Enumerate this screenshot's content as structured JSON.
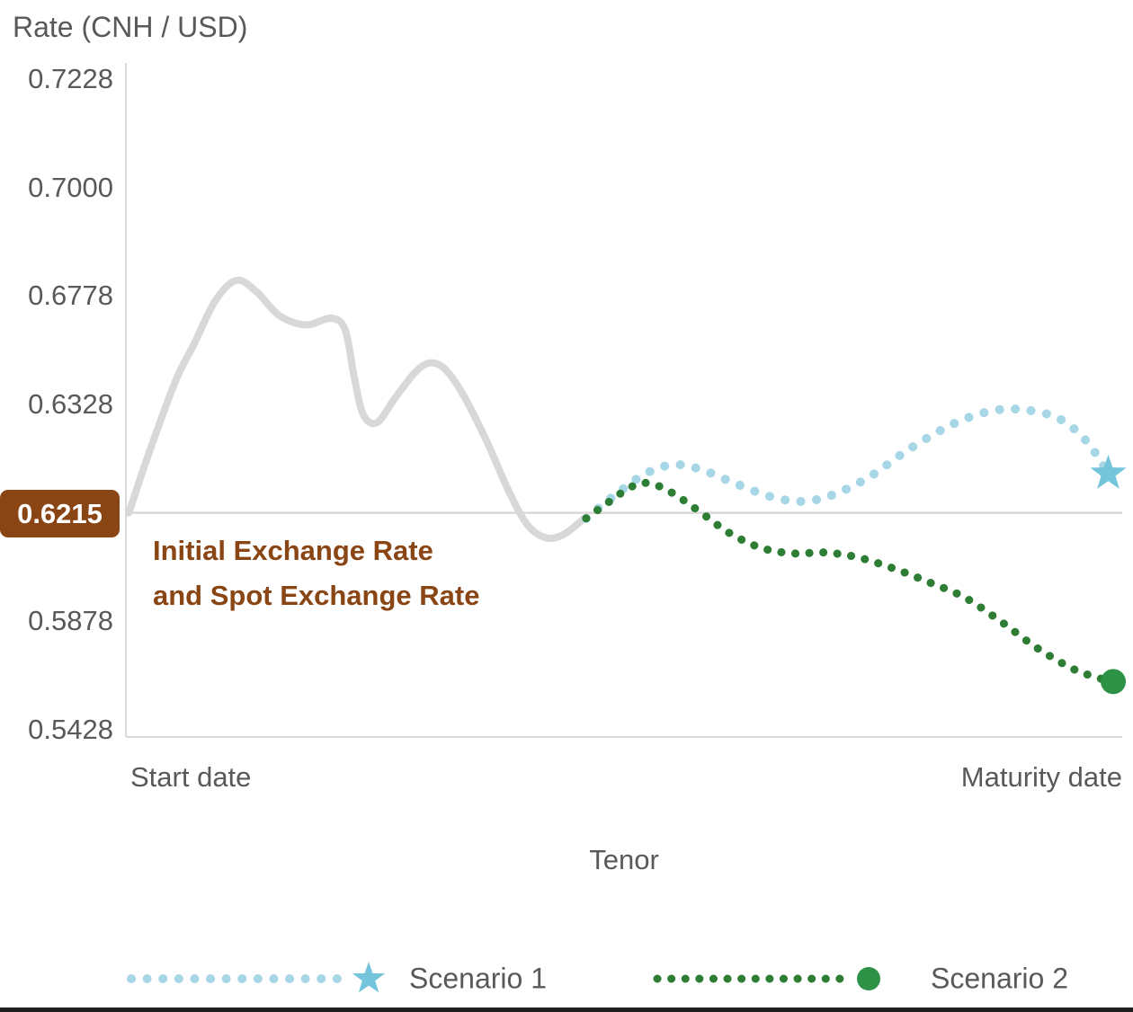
{
  "colors": {
    "brown": "#8a4514",
    "text-gray": "#595959",
    "axis-gray": "#d9d9d9",
    "historical-gray": "#d8d8d8",
    "scenario1-blue": "#a7d7e7",
    "scenario1-marker": "#74c5db",
    "scenario2-green": "#2e7d34",
    "scenario2-marker": "#2d9246",
    "bottom-bar": "#1e1e1e"
  },
  "chart_data": {
    "type": "line",
    "y_axis_title": "Rate (CNH / USD)",
    "x_axis_title": "Tenor",
    "x_tick_labels": [
      "Start date",
      "Maturity date"
    ],
    "y_tick_labels": [
      "0.7228",
      "0.7000",
      "0.6778",
      "0.6328",
      "0.6215",
      "0.5878",
      "0.5428"
    ],
    "y_tick_values": [
      0.7228,
      0.7,
      0.6778,
      0.6328,
      0.6215,
      0.5878,
      0.5428
    ],
    "grid": "off",
    "legend_position": "bottom",
    "reference_line": {
      "value": 0.6215,
      "badge_label": "0.6215",
      "annotation_line1": "Initial Exchange Rate",
      "annotation_line2": "and Spot Exchange Rate"
    },
    "series": [
      {
        "id": "historical",
        "color": "#d8d8d8",
        "line_style": "solid",
        "width": 8,
        "points": [
          [
            0.3,
            0.6215
          ],
          [
            2.3,
            0.6277
          ],
          [
            5.0,
            0.6427
          ],
          [
            6.8,
            0.6575
          ],
          [
            9.0,
            0.676
          ],
          [
            11.1,
            0.681
          ],
          [
            13.1,
            0.6787
          ],
          [
            15.4,
            0.6697
          ],
          [
            18.1,
            0.6658
          ],
          [
            20.6,
            0.6686
          ],
          [
            22.0,
            0.6638
          ],
          [
            22.9,
            0.6446
          ],
          [
            23.8,
            0.6318
          ],
          [
            25.2,
            0.6309
          ],
          [
            27.0,
            0.6354
          ],
          [
            29.1,
            0.6464
          ],
          [
            30.6,
            0.6501
          ],
          [
            32.1,
            0.6472
          ],
          [
            33.9,
            0.6365
          ],
          [
            36.2,
            0.629
          ],
          [
            38.5,
            0.6236
          ],
          [
            40.3,
            0.6178
          ],
          [
            42.1,
            0.6138
          ],
          [
            43.9,
            0.6147
          ],
          [
            46.0,
            0.6198
          ]
        ]
      },
      {
        "id": "scenario-1",
        "label": "Scenario 1",
        "color": "#a7d7e7",
        "line_style": "dotted",
        "dash": "0.1 17.5",
        "width": 10,
        "marker": "star",
        "marker_color": "#74c5db",
        "end_value": 0.626,
        "points": [
          [
            46.2,
            0.6198
          ],
          [
            48.9,
            0.6232
          ],
          [
            52.0,
            0.6255
          ],
          [
            54.8,
            0.6265
          ],
          [
            57.5,
            0.6261
          ],
          [
            61.1,
            0.6246
          ],
          [
            64.7,
            0.6232
          ],
          [
            67.9,
            0.6227
          ],
          [
            71.0,
            0.6234
          ],
          [
            74.7,
            0.6253
          ],
          [
            78.7,
            0.6282
          ],
          [
            83.3,
            0.6309
          ],
          [
            87.3,
            0.6322
          ],
          [
            90.5,
            0.6322
          ],
          [
            93.7,
            0.6313
          ],
          [
            96.4,
            0.629
          ],
          [
            98.6,
            0.6256
          ]
        ]
      },
      {
        "id": "scenario-2",
        "label": "Scenario 2",
        "color": "#2e7d34",
        "line_style": "dotted",
        "dash": "0.1 15.5",
        "width": 9,
        "marker": "circle",
        "marker_color": "#2d9246",
        "end_value": 0.563,
        "points": [
          [
            46.2,
            0.6198
          ],
          [
            48.7,
            0.6228
          ],
          [
            50.7,
            0.6242
          ],
          [
            52.5,
            0.6246
          ],
          [
            54.8,
            0.6236
          ],
          [
            57.5,
            0.6217
          ],
          [
            60.6,
            0.6152
          ],
          [
            63.8,
            0.6106
          ],
          [
            67.0,
            0.6089
          ],
          [
            70.1,
            0.6092
          ],
          [
            73.3,
            0.6078
          ],
          [
            76.9,
            0.6044
          ],
          [
            80.5,
            0.6001
          ],
          [
            84.2,
            0.5952
          ],
          [
            87.8,
            0.5878
          ],
          [
            91.4,
            0.5769
          ],
          [
            95.0,
            0.5682
          ],
          [
            97.7,
            0.5642
          ],
          [
            99.1,
            0.5628
          ]
        ]
      }
    ],
    "legend": [
      {
        "label": "Scenario 1",
        "marker": "star",
        "color": "#a7d7e7"
      },
      {
        "label": "Scenario 2",
        "marker": "circle",
        "color": "#2e7d34"
      }
    ]
  }
}
